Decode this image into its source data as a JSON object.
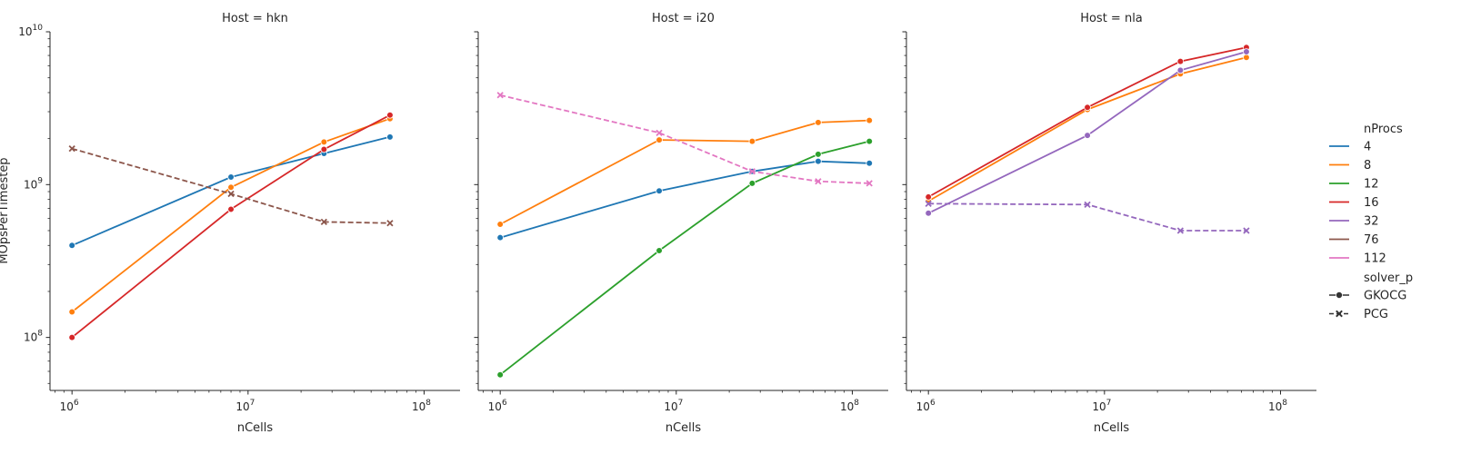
{
  "chart_data": {
    "type": "line",
    "xscale": "log",
    "yscale": "log",
    "xlim": [
      750000,
      160000000
    ],
    "ylim": [
      45000000,
      10000000000
    ],
    "xticks": [
      {
        "value": 1000000,
        "label": "10^6"
      },
      {
        "value": 10000000,
        "label": "10^7"
      },
      {
        "value": 100000000,
        "label": "10^8"
      }
    ],
    "yticks": [
      {
        "value": 100000000,
        "label": "10^8"
      },
      {
        "value": 1000000000,
        "label": "10^9"
      },
      {
        "value": 10000000000,
        "label": "10^10"
      }
    ],
    "xlabel": "nCells",
    "ylabel": "MOpsPerTimestep",
    "legend": {
      "placement": "right",
      "hue_title": "nProcs",
      "hue": [
        {
          "name": "4",
          "color": "#1f77b4"
        },
        {
          "name": "8",
          "color": "#ff7f0e"
        },
        {
          "name": "12",
          "color": "#2ca02c"
        },
        {
          "name": "16",
          "color": "#d62728"
        },
        {
          "name": "32",
          "color": "#9467bd"
        },
        {
          "name": "76",
          "color": "#8c564b"
        },
        {
          "name": "112",
          "color": "#e377c2"
        }
      ],
      "style_title": "solver_p",
      "style": [
        {
          "name": "GKOCG",
          "dash": "solid",
          "marker": "circle"
        },
        {
          "name": "PCG",
          "dash": "dashed",
          "marker": "x"
        }
      ]
    },
    "panels": [
      {
        "title": "Host = hkn",
        "series": [
          {
            "nProcs": "4",
            "solver": "GKOCG",
            "color": "#1f77b4",
            "x": [
              1000000,
              8000000,
              27000000,
              64000000
            ],
            "y": [
              400000000,
              1120000000,
              1600000000,
              2050000000
            ]
          },
          {
            "nProcs": "8",
            "solver": "GKOCG",
            "color": "#ff7f0e",
            "x": [
              1000000,
              8000000,
              27000000,
              64000000
            ],
            "y": [
              147000000,
              960000000,
              1900000000,
              2700000000
            ]
          },
          {
            "nProcs": "16",
            "solver": "GKOCG",
            "color": "#d62728",
            "x": [
              1000000,
              8000000,
              27000000,
              64000000
            ],
            "y": [
              100000000,
              690000000,
              1700000000,
              2850000000
            ]
          },
          {
            "nProcs": "76",
            "solver": "PCG",
            "color": "#8c564b",
            "x": [
              1000000,
              8000000,
              27000000,
              64000000
            ],
            "y": [
              1720000000,
              870000000,
              570000000,
              560000000
            ]
          }
        ]
      },
      {
        "title": "Host = i20",
        "series": [
          {
            "nProcs": "4",
            "solver": "GKOCG",
            "color": "#1f77b4",
            "x": [
              1000000,
              8000000,
              27000000,
              64000000,
              125000000
            ],
            "y": [
              450000000,
              910000000,
              1220000000,
              1420000000,
              1380000000
            ]
          },
          {
            "nProcs": "8",
            "solver": "GKOCG",
            "color": "#ff7f0e",
            "x": [
              1000000,
              8000000,
              27000000,
              64000000,
              125000000
            ],
            "y": [
              550000000,
              1960000000,
              1920000000,
              2550000000,
              2630000000
            ]
          },
          {
            "nProcs": "12",
            "solver": "GKOCG",
            "color": "#2ca02c",
            "x": [
              1000000,
              8000000,
              27000000,
              64000000,
              125000000
            ],
            "y": [
              57000000,
              370000000,
              1020000000,
              1580000000,
              1920000000
            ]
          },
          {
            "nProcs": "112",
            "solver": "PCG",
            "color": "#e377c2",
            "x": [
              1000000,
              8000000,
              27000000,
              64000000,
              125000000
            ],
            "y": [
              3850000000,
              2180000000,
              1220000000,
              1050000000,
              1020000000
            ]
          }
        ]
      },
      {
        "title": "Host = nla",
        "series": [
          {
            "nProcs": "8",
            "solver": "GKOCG",
            "color": "#ff7f0e",
            "x": [
              1000000,
              8000000,
              27000000,
              64000000
            ],
            "y": [
              780000000,
              3100000000,
              5300000000,
              6800000000
            ]
          },
          {
            "nProcs": "16",
            "solver": "GKOCG",
            "color": "#d62728",
            "x": [
              1000000,
              8000000,
              27000000,
              64000000
            ],
            "y": [
              830000000,
              3200000000,
              6400000000,
              7900000000
            ]
          },
          {
            "nProcs": "32",
            "solver": "GKOCG",
            "color": "#9467bd",
            "x": [
              1000000,
              8000000,
              27000000,
              64000000
            ],
            "y": [
              650000000,
              2100000000,
              5600000000,
              7400000000
            ]
          },
          {
            "nProcs": "32",
            "solver": "PCG",
            "color": "#9467bd",
            "x": [
              1000000,
              8000000,
              27000000,
              64000000
            ],
            "y": [
              750000000,
              740000000,
              500000000,
              500000000
            ]
          }
        ]
      }
    ]
  }
}
